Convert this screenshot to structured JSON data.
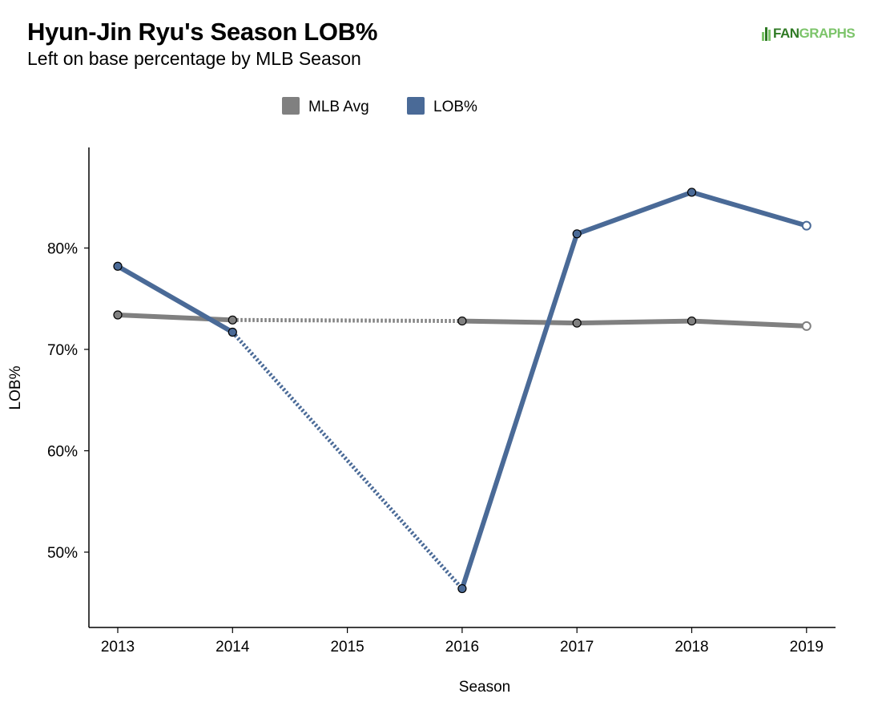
{
  "header": {
    "title": "Hyun-Jin Ryu's Season LOB%",
    "subtitle": "Left on base percentage by MLB Season"
  },
  "logo": {
    "fan": "FAN",
    "graphs": "GRAPHS",
    "icon": "fangraphs-logo-icon"
  },
  "colors": {
    "mlb_avg": "#808080",
    "lob": "#4a6a97"
  },
  "chart_data": {
    "type": "line",
    "title": "Hyun-Jin Ryu's Season LOB%",
    "subtitle": "Left on base percentage by MLB Season",
    "xlabel": "Season",
    "ylabel": "LOB%",
    "categories": [
      "2013",
      "2014",
      "2015",
      "2016",
      "2017",
      "2018",
      "2019"
    ],
    "ylim": [
      0.43,
      0.89
    ],
    "yticks": [
      0.5,
      0.6,
      0.7,
      0.8
    ],
    "ytick_labels": [
      "50%",
      "60%",
      "70%",
      "80%"
    ],
    "legend_position": "top",
    "series": [
      {
        "name": "MLB Avg",
        "color": "#808080",
        "x": [
          "2013",
          "2014",
          "2016",
          "2017",
          "2018",
          "2019"
        ],
        "values": [
          0.734,
          0.729,
          0.728,
          0.726,
          0.728,
          0.723
        ]
      },
      {
        "name": "LOB%",
        "color": "#4a6a97",
        "x": [
          "2013",
          "2014",
          "2016",
          "2017",
          "2018",
          "2019"
        ],
        "values": [
          0.782,
          0.717,
          0.464,
          0.814,
          0.855,
          0.822
        ]
      }
    ]
  }
}
